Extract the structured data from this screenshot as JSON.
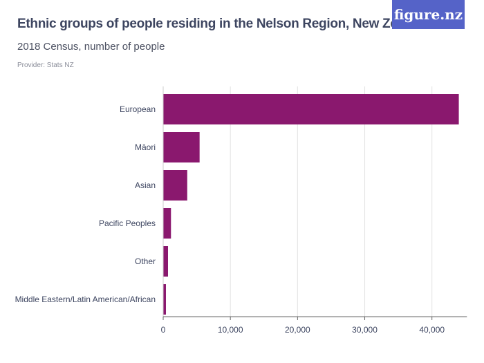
{
  "header": {
    "title": "Ethnic groups of people residing in the Nelson Region, New Zealand",
    "subtitle": "2018 Census, number of people",
    "provider": "Provider: Stats NZ",
    "logo": "figure.nz"
  },
  "colors": {
    "bar": "#8a186e",
    "logo_bg": "#5563c8"
  },
  "chart_data": {
    "type": "bar",
    "orientation": "horizontal",
    "title": "Ethnic groups of people residing in the Nelson Region, New Zealand",
    "subtitle": "2018 Census, number of people",
    "categories": [
      "European",
      "Māori",
      "Asian",
      "Pacific Peoples",
      "Other",
      "Middle Eastern/Latin American/African"
    ],
    "values": [
      44000,
      5420,
      3580,
      1160,
      720,
      410
    ],
    "xlim": [
      0,
      45000
    ],
    "xticks": [
      0,
      10000,
      20000,
      30000,
      40000
    ],
    "xtick_labels": [
      "0",
      "10,000",
      "20,000",
      "30,000",
      "40,000"
    ],
    "grid": true
  }
}
